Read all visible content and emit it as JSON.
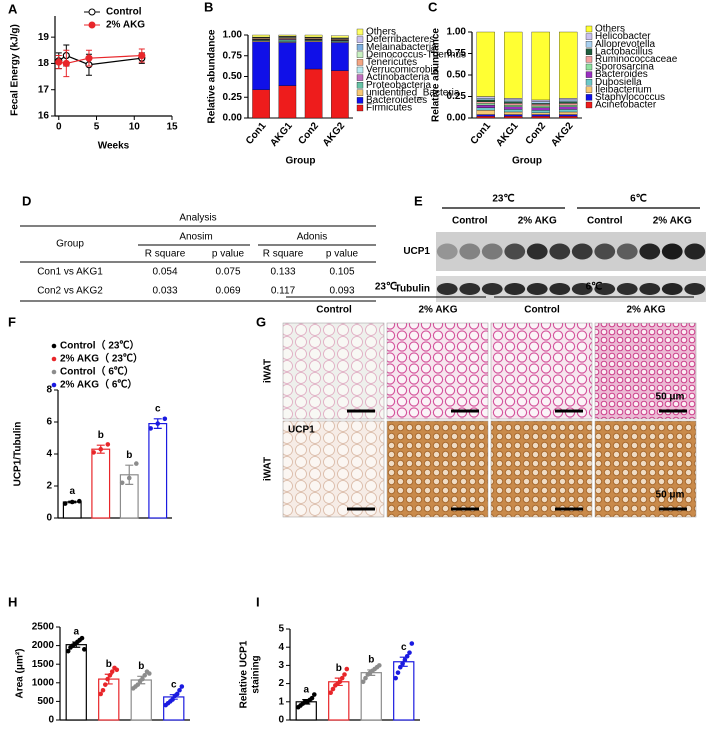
{
  "chart_data": [
    {
      "panel": "A",
      "type": "line",
      "x": [
        0,
        1,
        4,
        11
      ],
      "xlabel": "Weeks",
      "ylabel": "Fecal Energy (kJ/g)",
      "xlim": [
        -0.5,
        15
      ],
      "xticks": [
        0,
        5,
        10,
        15
      ],
      "ylim": [
        16,
        19.5
      ],
      "yticks": [
        16,
        17,
        18,
        19
      ],
      "series": [
        {
          "name": "Control",
          "color": "#000000",
          "marker": "open",
          "values": [
            18.1,
            18.3,
            17.95,
            18.2
          ],
          "errors": [
            0.3,
            0.4,
            0.4,
            0.2
          ]
        },
        {
          "name": "2% AKG",
          "color": "#e8262a",
          "marker": "filled",
          "values": [
            18.05,
            18.0,
            18.2,
            18.3
          ],
          "errors": [
            0.25,
            0.5,
            0.3,
            0.25
          ]
        }
      ]
    },
    {
      "panel": "B",
      "type": "stacked-bar",
      "categories": [
        "Con1",
        "AKG1",
        "Con2",
        "AKG2"
      ],
      "xlabel": "Group",
      "ylabel": "Relative abundance",
      "ylim": [
        0,
        1
      ],
      "yticks": [
        {
          "value": 0,
          "label": "0.00"
        },
        {
          "value": 0.25,
          "label": "0.25"
        },
        {
          "value": 0.5,
          "label": "0.50"
        },
        {
          "value": 0.75,
          "label": "0.75"
        },
        {
          "value": 1,
          "label": "1.00"
        }
      ],
      "series": [
        {
          "name": "Firmicutes",
          "color": "#ee1c1c",
          "values": [
            0.34,
            0.39,
            0.59,
            0.57
          ]
        },
        {
          "name": "Bacteroidetes",
          "color": "#1010e8",
          "values": [
            0.58,
            0.52,
            0.33,
            0.34
          ]
        },
        {
          "name": "unidentified_Bacteria",
          "color": "#f7c873",
          "values": [
            0.01,
            0.01,
            0.01,
            0.01
          ]
        },
        {
          "name": "Proteobacteria",
          "color": "#66c2a5",
          "values": [
            0.01,
            0.02,
            0.01,
            0.01
          ]
        },
        {
          "name": "Actinobacteria",
          "color": "#c070c0",
          "values": [
            0.005,
            0.01,
            0.005,
            0.005
          ]
        },
        {
          "name": "Verrucomicrobia",
          "color": "#b8eaf0",
          "values": [
            0.005,
            0.005,
            0.005,
            0.005
          ]
        },
        {
          "name": "Tenericutes",
          "color": "#f4a582",
          "values": [
            0.01,
            0.01,
            0.01,
            0.01
          ]
        },
        {
          "name": "Deinococcus-Thermus",
          "color": "#c8f0c0",
          "values": [
            0.005,
            0.01,
            0.005,
            0.005
          ]
        },
        {
          "name": "Melainabacteria",
          "color": "#7fb0e0",
          "values": [
            0.005,
            0.005,
            0.005,
            0.005
          ]
        },
        {
          "name": "Deferribacteres",
          "color": "#c9c0f0",
          "values": [
            0.005,
            0.005,
            0.005,
            0.005
          ]
        },
        {
          "name": "Others",
          "color": "#ffff66",
          "values": [
            0.025,
            0.015,
            0.025,
            0.025
          ]
        }
      ]
    },
    {
      "panel": "C",
      "type": "stacked-bar",
      "categories": [
        "Con1",
        "AKG1",
        "Con2",
        "AKG2"
      ],
      "xlabel": "Group",
      "ylabel": "Relative abundance",
      "ylim": [
        0,
        1
      ],
      "yticks": [
        {
          "value": 0,
          "label": "0.00"
        },
        {
          "value": 0.25,
          "label": "0.25"
        },
        {
          "value": 0.5,
          "label": "0.50"
        },
        {
          "value": 0.75,
          "label": "0.75"
        },
        {
          "value": 1,
          "label": "1.00"
        }
      ],
      "series": [
        {
          "name": "Acinetobacter",
          "color": "#ee1c1c",
          "values": [
            0.02,
            0.02,
            0.02,
            0.02
          ]
        },
        {
          "name": "Staphylococcus",
          "color": "#1010e8",
          "values": [
            0.02,
            0.02,
            0.02,
            0.02
          ]
        },
        {
          "name": "Ileibacterium",
          "color": "#f7c873",
          "values": [
            0.05,
            0.03,
            0.02,
            0.03
          ]
        },
        {
          "name": "Dubosiella",
          "color": "#6cc8c8",
          "values": [
            0.03,
            0.03,
            0.03,
            0.03
          ]
        },
        {
          "name": "Bacteroides",
          "color": "#9a2fc0",
          "values": [
            0.03,
            0.03,
            0.03,
            0.03
          ]
        },
        {
          "name": "Sporosarcina",
          "color": "#8fe0a0",
          "values": [
            0.02,
            0.02,
            0.02,
            0.02
          ]
        },
        {
          "name": "Ruminococcaceae",
          "color": "#f4a0a0",
          "values": [
            0.02,
            0.02,
            0.02,
            0.02
          ]
        },
        {
          "name": "Lactobacillus",
          "color": "#1f5f3f",
          "values": [
            0.02,
            0.02,
            0.01,
            0.02
          ]
        },
        {
          "name": "Alloprevotella",
          "color": "#a8d0f0",
          "values": [
            0.02,
            0.02,
            0.02,
            0.02
          ]
        },
        {
          "name": "Helicobacter",
          "color": "#c9c0f0",
          "values": [
            0.02,
            0.02,
            0.02,
            0.02
          ]
        },
        {
          "name": "Others",
          "color": "#ffff33",
          "values": [
            0.75,
            0.77,
            0.79,
            0.77
          ]
        }
      ]
    },
    {
      "panel": "F",
      "type": "bar-dots",
      "ylabel": "UCP1/Tubulin",
      "ylim": [
        0,
        8
      ],
      "yticks": [
        0,
        2,
        4,
        6,
        8
      ],
      "categories": [
        "Control（ 23℃）",
        "2% AKG（ 23℃）",
        "Control（ 6℃）",
        "2% AKG（ 6℃）"
      ],
      "colors": [
        "#000000",
        "#e8262a",
        "#8c8c8c",
        "#1a1ae0"
      ],
      "values": [
        1.0,
        4.3,
        2.7,
        5.9
      ],
      "errors": [
        0.05,
        0.25,
        0.6,
        0.3
      ],
      "points": [
        [
          0.9,
          1.0,
          1.05
        ],
        [
          4.1,
          4.3,
          4.6
        ],
        [
          2.2,
          2.5,
          3.4
        ],
        [
          5.6,
          5.9,
          6.2
        ]
      ],
      "annotations": [
        "a",
        "b",
        "b",
        "c"
      ]
    },
    {
      "panel": "H",
      "type": "bar-dots",
      "ylabel": "Area (μm²)",
      "ylim": [
        0,
        2500
      ],
      "yticks": [
        0,
        500,
        1000,
        1500,
        2000,
        2500
      ],
      "colors": [
        "#000000",
        "#e8262a",
        "#8c8c8c",
        "#1a1ae0"
      ],
      "values": [
        2025,
        1100,
        1075,
        620
      ],
      "errors": [
        70,
        130,
        100,
        60
      ],
      "points": [
        [
          1850,
          1950,
          2000,
          2050,
          2100,
          2150,
          2200,
          1900
        ],
        [
          700,
          800,
          950,
          1100,
          1200,
          1300,
          1400,
          1350
        ],
        [
          850,
          900,
          950,
          1050,
          1100,
          1200,
          1300,
          1250
        ],
        [
          400,
          450,
          500,
          550,
          650,
          700,
          800,
          900
        ]
      ],
      "annotations": [
        "a",
        "b",
        "b",
        "c"
      ]
    },
    {
      "panel": "I",
      "type": "bar-dots",
      "ylabel": [
        "Relative UCP1",
        "staining"
      ],
      "ylim": [
        0,
        5
      ],
      "yticks": [
        0,
        1,
        2,
        3,
        4,
        5
      ],
      "colors": [
        "#000000",
        "#e8262a",
        "#8c8c8c",
        "#1a1ae0"
      ],
      "values": [
        1.0,
        2.1,
        2.6,
        3.2
      ],
      "errors": [
        0.12,
        0.2,
        0.15,
        0.25
      ],
      "points": [
        [
          0.7,
          0.8,
          0.9,
          1.0,
          1.0,
          1.1,
          1.2,
          1.4
        ],
        [
          1.5,
          1.7,
          1.9,
          2.0,
          2.1,
          2.3,
          2.5,
          2.8
        ],
        [
          2.1,
          2.3,
          2.5,
          2.6,
          2.7,
          2.8,
          2.9,
          3.0
        ],
        [
          2.3,
          2.6,
          2.9,
          3.1,
          3.3,
          3.5,
          3.7,
          4.2
        ]
      ],
      "annotations": [
        "a",
        "b",
        "b",
        "c"
      ]
    }
  ],
  "table": {
    "panel": "D",
    "caption": "Analysis",
    "header": [
      "Group",
      "Anosim",
      "Adonis"
    ],
    "subheader": [
      "R square",
      "p value",
      "R square",
      "p value"
    ],
    "rows": [
      [
        "Con1 vs AKG1",
        "0.054",
        "0.075",
        "0.133",
        "0.105"
      ],
      [
        "Con2 vs AKG2",
        "0.033",
        "0.069",
        "0.117",
        "0.093"
      ]
    ]
  },
  "blot": {
    "panel": "E",
    "temperatures": [
      "23℃",
      "6℃"
    ],
    "groups": [
      "Control",
      "2% AKG",
      "Control",
      "2% AKG"
    ],
    "rows": [
      "UCP1",
      "Tubulin"
    ]
  },
  "histology": {
    "panel": "G",
    "temperatures": [
      "23℃",
      "6℃"
    ],
    "groups": [
      "Control",
      "2% AKG",
      "Control",
      "2% AKG"
    ],
    "rows": [
      "iWAT",
      "iWAT"
    ],
    "stain_label": "UCP1",
    "scale_bar": "50 μm"
  }
}
